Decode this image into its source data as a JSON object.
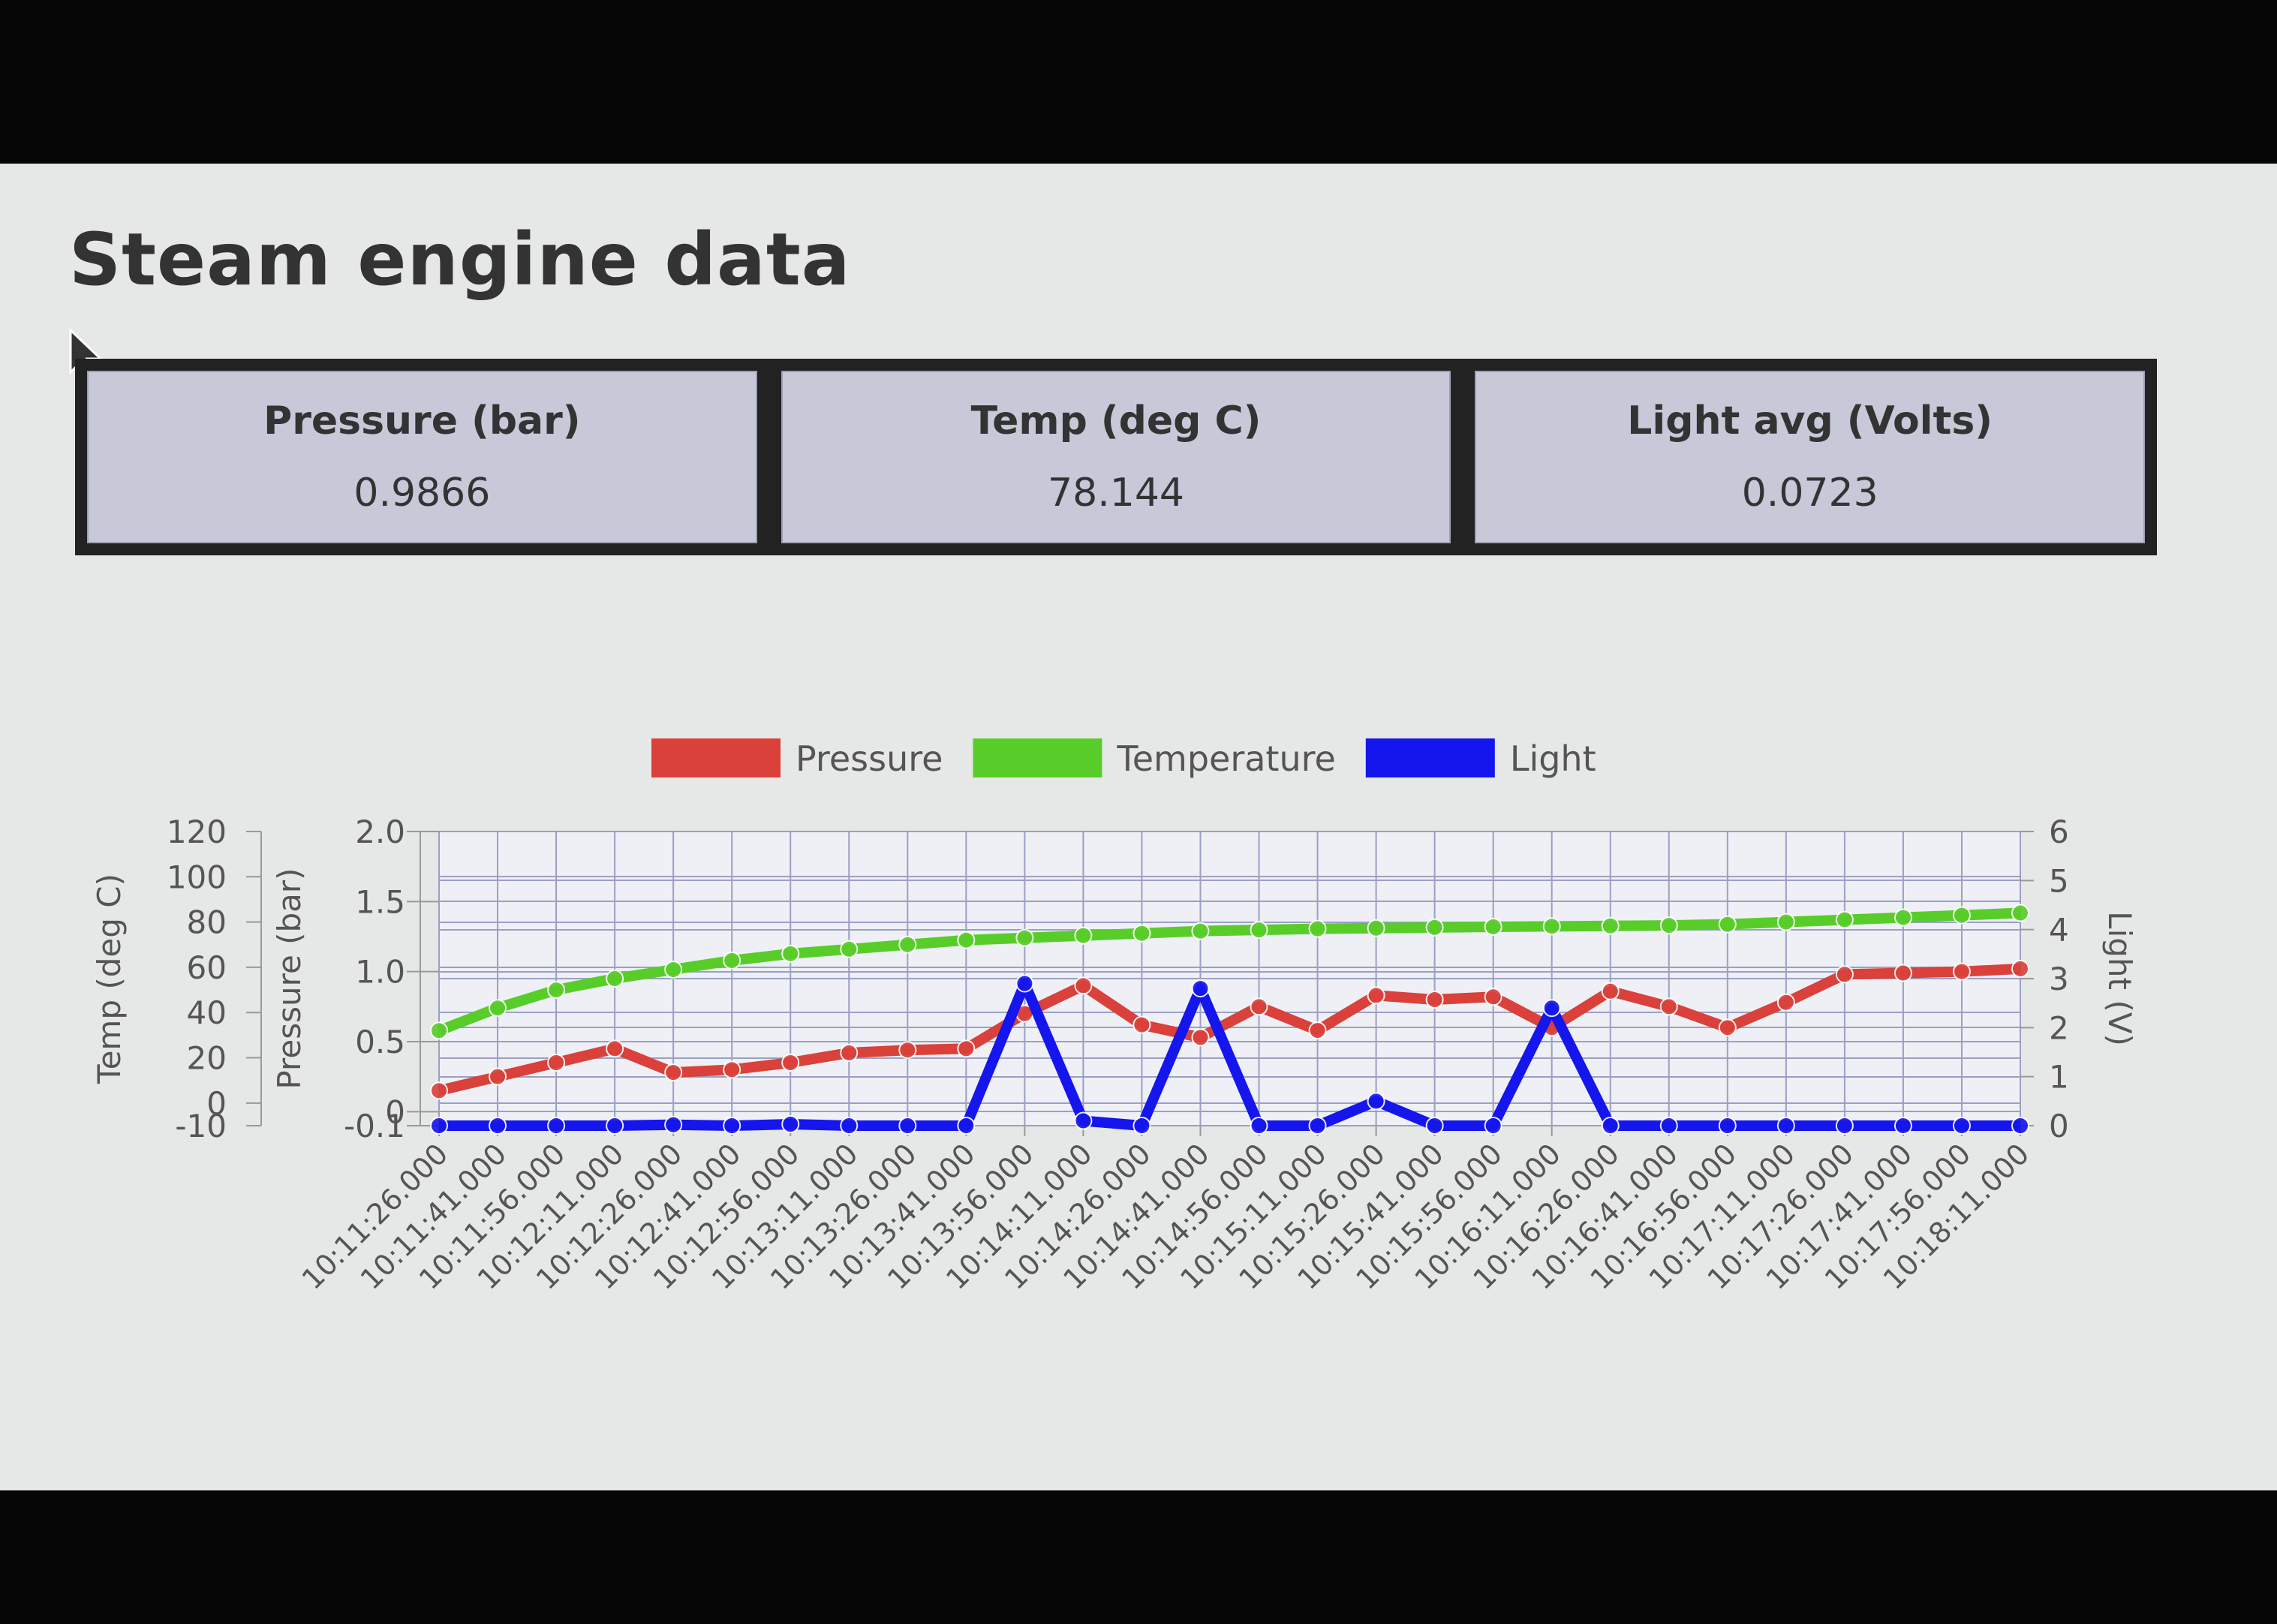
{
  "page": {
    "title": "Steam engine data"
  },
  "cards": [
    {
      "label": "Pressure (bar)",
      "value": "0.9866"
    },
    {
      "label": "Temp (deg C)",
      "value": "78.144"
    },
    {
      "label": "Light avg (Volts)",
      "value": "0.0723"
    }
  ],
  "chart_data": {
    "type": "line",
    "legend": {
      "position": "top"
    },
    "grid": true,
    "x_labels": [
      "10:11:26.000",
      "10:11:41.000",
      "10:11:56.000",
      "10:12:11.000",
      "10:12:26.000",
      "10:12:41.000",
      "10:12:56.000",
      "10:13:11.000",
      "10:13:26.000",
      "10:13:41.000",
      "10:13:56.000",
      "10:14:11.000",
      "10:14:26.000",
      "10:14:41.000",
      "10:14:56.000",
      "10:15:11.000",
      "10:15:26.000",
      "10:15:41.000",
      "10:15:56.000",
      "10:16:11.000",
      "10:16:26.000",
      "10:16:41.000",
      "10:16:56.000",
      "10:17:11.000",
      "10:17:26.000",
      "10:17:41.000",
      "10:17:56.000",
      "10:18:11.000"
    ],
    "axes": {
      "temp": {
        "label": "Temp (deg C)",
        "min": -10,
        "max": 120,
        "ticks": [
          "120",
          "100",
          "80",
          "60",
          "40",
          "20",
          "0",
          "-10"
        ]
      },
      "pressure": {
        "label": "Pressure (bar)",
        "min": -0.1,
        "max": 2.0,
        "ticks": [
          "2.0",
          "1.5",
          "1.0",
          "0.5",
          "0",
          "-0.1"
        ]
      },
      "light": {
        "label": "Light (V)",
        "min": 0,
        "max": 6,
        "ticks": [
          "6",
          "5",
          "4",
          "3",
          "2",
          "1",
          "0"
        ]
      }
    },
    "series": [
      {
        "name": "Pressure",
        "axis": "pressure",
        "color": "#d9413a",
        "values": [
          0.15,
          0.25,
          0.35,
          0.45,
          0.28,
          0.3,
          0.35,
          0.42,
          0.44,
          0.45,
          0.7,
          0.9,
          0.62,
          0.53,
          0.75,
          0.58,
          0.83,
          0.8,
          0.82,
          0.6,
          0.86,
          0.75,
          0.6,
          0.78,
          0.98,
          0.99,
          1.0,
          1.02
        ]
      },
      {
        "name": "Temperature",
        "axis": "temp",
        "color": "#58cd2a",
        "values": [
          32,
          42,
          50,
          55,
          59,
          63,
          66,
          68,
          70,
          72,
          73,
          74,
          75,
          76,
          76.5,
          77,
          77.3,
          77.6,
          77.9,
          78.1,
          78.3,
          78.5,
          79,
          80,
          81,
          82,
          83,
          84
        ]
      },
      {
        "name": "Light",
        "axis": "light",
        "color": "#1515ee",
        "values": [
          0,
          0,
          0,
          0,
          0.02,
          0,
          0.03,
          0,
          0,
          0,
          2.9,
          0.1,
          0,
          2.8,
          0,
          0,
          0.5,
          0,
          0,
          2.4,
          0,
          0,
          0,
          0,
          0,
          0,
          0,
          0
        ]
      }
    ]
  }
}
